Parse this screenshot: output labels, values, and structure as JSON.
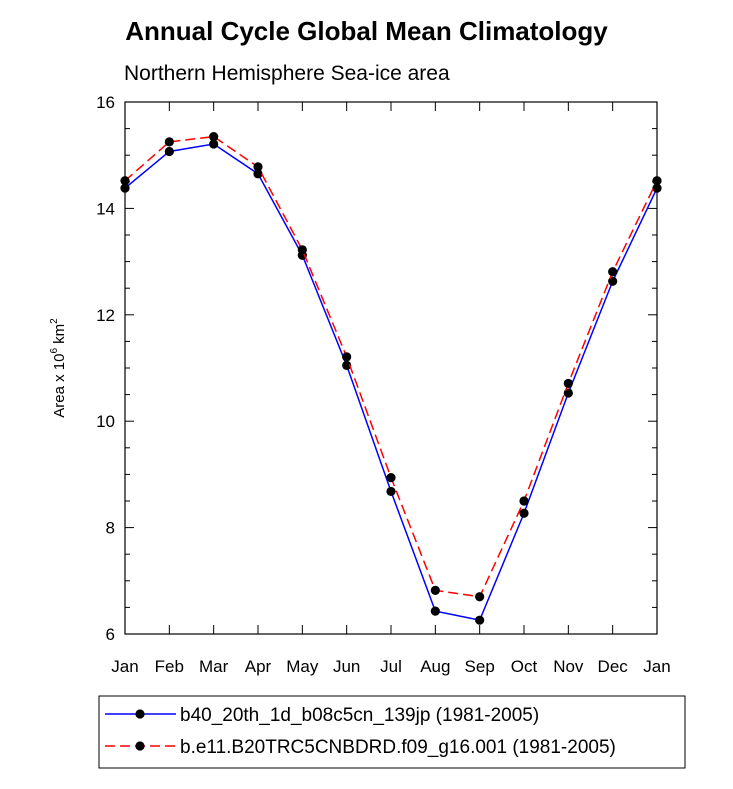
{
  "chart_data": {
    "type": "line",
    "title": "Annual Cycle Global Mean Climatology",
    "subtitle": "Northern Hemisphere Sea-ice area",
    "ylabel_main": "Area x 10",
    "ylabel_exp": "6",
    "ylabel_unit": " km",
    "ylabel_unit_exp": "2",
    "ylim": [
      6,
      16
    ],
    "yticks": [
      6,
      8,
      10,
      12,
      14,
      16
    ],
    "categories": [
      "Jan",
      "Feb",
      "Mar",
      "Apr",
      "May",
      "Jun",
      "Jul",
      "Aug",
      "Sep",
      "Oct",
      "Nov",
      "Dec",
      "Jan"
    ],
    "series": [
      {
        "name": "b40_20th_1d_b08c5cn_139jp (1981-2005)",
        "color": "#0000ff",
        "dash": "solid",
        "values": [
          14.38,
          15.07,
          15.21,
          14.65,
          13.12,
          11.05,
          8.68,
          6.43,
          6.26,
          8.27,
          10.53,
          12.63,
          14.38
        ]
      },
      {
        "name": "b.e11.B20TRC5CNBDRD.f09_g16.001 (1981-2005)",
        "color": "#ff0000",
        "dash": "dashed",
        "values": [
          14.52,
          15.25,
          15.35,
          14.78,
          13.22,
          11.21,
          8.94,
          6.82,
          6.7,
          8.5,
          10.71,
          12.81,
          14.52
        ]
      }
    ],
    "grid": false,
    "legend_position": "bottom"
  }
}
